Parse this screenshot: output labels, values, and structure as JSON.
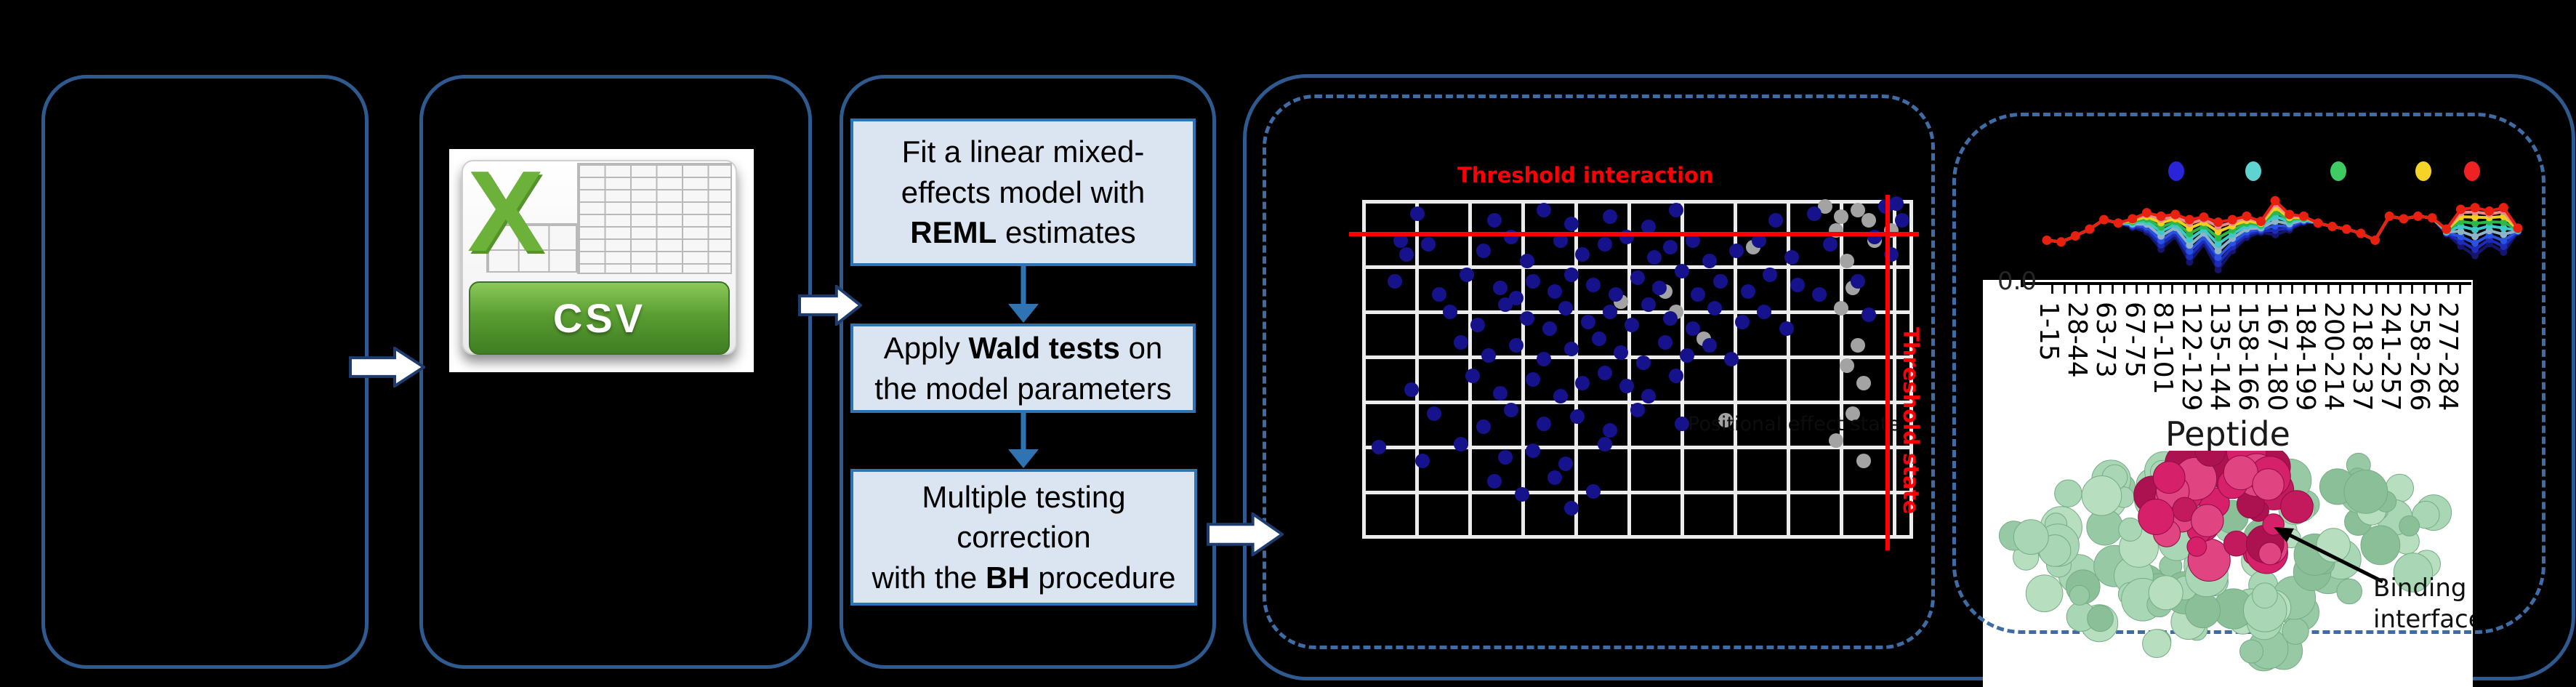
{
  "colors": {
    "background": "#000000",
    "panel_border": "#2e5a90",
    "dashed_border": "#3f6ca5",
    "flowbox_fill": "#dbe5f1",
    "flowbox_border": "#2e74b5",
    "connector_arrow": "#2e74b5",
    "block_arrow_fill": "#ffffff",
    "block_arrow_outline": "#1e3c6e",
    "threshold_red": "#fb0006",
    "csv_green": "#5a9e32",
    "structure_green": "#a9d6b4",
    "structure_magenta": "#d62069"
  },
  "csv": {
    "x_glyph": "X",
    "label": "CSV"
  },
  "flowchart": {
    "boxes": [
      {
        "segments": [
          {
            "t": "Fit a linear mixed-\neffects model with\n",
            "b": false
          },
          {
            "t": "REML",
            "b": true
          },
          {
            "t": " estimates",
            "b": false
          }
        ]
      },
      {
        "segments": [
          {
            "t": "Apply ",
            "b": false
          },
          {
            "t": "Wald tests",
            "b": true
          },
          {
            "t": " on\nthe model parameters",
            "b": false
          }
        ]
      },
      {
        "segments": [
          {
            "t": "Multiple testing\ncorrection\nwith the ",
            "b": false
          },
          {
            "t": "BH",
            "b": true
          },
          {
            "t": " procedure",
            "b": false
          }
        ]
      }
    ]
  },
  "structure": {
    "annotation_line1": "Binding",
    "annotation_line2": "interface"
  },
  "chart_data": [
    {
      "type": "scatter",
      "threshold_labels": {
        "interaction": "Threshold interaction",
        "state": "Threshold state"
      },
      "faint_inplot_label": "Positional effect state",
      "threshold_line_color": "#fb0006",
      "point_colors": {
        "blue": "#15128c",
        "gray": "#a3a3a3"
      },
      "x_range": [
        0,
        100
      ],
      "y_range": [
        0,
        100
      ],
      "threshold_interaction_y": 10,
      "threshold_state_x": 95,
      "points_blue": [
        [
          10,
          4
        ],
        [
          24,
          6
        ],
        [
          33,
          3
        ],
        [
          38,
          7
        ],
        [
          45,
          5
        ],
        [
          52,
          8
        ],
        [
          57,
          3
        ],
        [
          75,
          6
        ],
        [
          82,
          4
        ],
        [
          95,
          2
        ],
        [
          97,
          1
        ],
        [
          98,
          6
        ],
        [
          7,
          12
        ],
        [
          8,
          16
        ],
        [
          12,
          13
        ],
        [
          22,
          15
        ],
        [
          27,
          11
        ],
        [
          30,
          18
        ],
        [
          36,
          12
        ],
        [
          40,
          16
        ],
        [
          44,
          13
        ],
        [
          48,
          11
        ],
        [
          53,
          17
        ],
        [
          56,
          14
        ],
        [
          60,
          12
        ],
        [
          63,
          18
        ],
        [
          68,
          15
        ],
        [
          72,
          12
        ],
        [
          78,
          17
        ],
        [
          85,
          13
        ],
        [
          93,
          11
        ],
        [
          96,
          16
        ],
        [
          6,
          24
        ],
        [
          14,
          28
        ],
        [
          19,
          22
        ],
        [
          25,
          26
        ],
        [
          28,
          29
        ],
        [
          31,
          24
        ],
        [
          35,
          27
        ],
        [
          38,
          22
        ],
        [
          42,
          25
        ],
        [
          46,
          28
        ],
        [
          50,
          23
        ],
        [
          54,
          26
        ],
        [
          58,
          21
        ],
        [
          61,
          28
        ],
        [
          65,
          24
        ],
        [
          70,
          27
        ],
        [
          74,
          22
        ],
        [
          79,
          25
        ],
        [
          83,
          28
        ],
        [
          90,
          24
        ],
        [
          16,
          33
        ],
        [
          21,
          37
        ],
        [
          26,
          31
        ],
        [
          30,
          35
        ],
        [
          34,
          38
        ],
        [
          37,
          32
        ],
        [
          41,
          36
        ],
        [
          45,
          33
        ],
        [
          49,
          37
        ],
        [
          52,
          31
        ],
        [
          56,
          35
        ],
        [
          60,
          38
        ],
        [
          64,
          32
        ],
        [
          69,
          36
        ],
        [
          73,
          33
        ],
        [
          77,
          38
        ],
        [
          92,
          34
        ],
        [
          18,
          42
        ],
        [
          23,
          46
        ],
        [
          28,
          43
        ],
        [
          33,
          47
        ],
        [
          38,
          44
        ],
        [
          43,
          41
        ],
        [
          47,
          45
        ],
        [
          51,
          48
        ],
        [
          55,
          42
        ],
        [
          59,
          46
        ],
        [
          63,
          43
        ],
        [
          67,
          47
        ],
        [
          9,
          56
        ],
        [
          20,
          52
        ],
        [
          25,
          57
        ],
        [
          31,
          53
        ],
        [
          36,
          58
        ],
        [
          40,
          54
        ],
        [
          44,
          51
        ],
        [
          48,
          55
        ],
        [
          52,
          58
        ],
        [
          57,
          52
        ],
        [
          13,
          63
        ],
        [
          22,
          67
        ],
        [
          27,
          62
        ],
        [
          33,
          66
        ],
        [
          39,
          64
        ],
        [
          45,
          68
        ],
        [
          50,
          62
        ],
        [
          58,
          66
        ],
        [
          3,
          73
        ],
        [
          11,
          77
        ],
        [
          18,
          72
        ],
        [
          26,
          76
        ],
        [
          31,
          74
        ],
        [
          37,
          78
        ],
        [
          44,
          72
        ],
        [
          24,
          83
        ],
        [
          29,
          87
        ],
        [
          35,
          82
        ],
        [
          42,
          86
        ],
        [
          38,
          91
        ]
      ],
      "points_gray": [
        [
          84,
          2
        ],
        [
          87,
          5
        ],
        [
          86,
          9
        ],
        [
          90,
          3
        ],
        [
          92,
          6
        ],
        [
          93,
          12
        ],
        [
          55,
          27
        ],
        [
          57,
          33
        ],
        [
          47,
          30
        ],
        [
          62,
          41
        ],
        [
          71,
          14
        ],
        [
          88,
          18
        ],
        [
          89,
          26
        ],
        [
          87,
          32
        ],
        [
          90,
          43
        ],
        [
          88,
          49
        ],
        [
          91,
          54
        ],
        [
          89,
          63
        ],
        [
          86,
          71
        ],
        [
          91,
          77
        ],
        [
          66,
          65
        ],
        [
          96,
          9
        ]
      ]
    },
    {
      "type": "line",
      "x_label": "Peptide",
      "y_tick_visible": "0.0",
      "categories": [
        "1-15",
        "28-44",
        "63-73",
        "67-75",
        "81-101",
        "122-129",
        "135-144",
        "158-166",
        "167-180",
        "184-199",
        "200-214",
        "218-237",
        "241-257",
        "258-266",
        "277-284"
      ],
      "legend_marker_colors": [
        "#2a24d8",
        "#5ed3cf",
        "#3fcb63",
        "#f5d327",
        "#ee2222"
      ],
      "envelope": [
        0.42,
        0.4,
        0.47,
        0.55,
        0.66,
        0.62,
        0.67,
        0.74,
        0.7,
        0.72,
        0.66,
        0.69,
        0.63,
        0.66,
        0.7,
        0.64,
        0.88,
        0.72,
        0.7,
        0.62,
        0.58,
        0.55,
        0.5,
        0.42,
        0.7,
        0.67,
        0.7,
        0.68,
        0.55,
        0.78,
        0.8,
        0.76,
        0.8,
        0.56
      ],
      "spread": [
        0,
        0,
        0,
        0,
        0,
        0,
        0.15,
        0.3,
        0.55,
        0.35,
        0.75,
        0.45,
        0.88,
        0.55,
        0.35,
        0.2,
        0.45,
        0.25,
        0.1,
        0,
        0,
        0,
        0,
        0,
        0,
        0,
        0,
        0,
        0.1,
        0.55,
        0.7,
        0.5,
        0.65,
        0.08
      ],
      "series": [
        {
          "name": "dark-navy",
          "color": "#15156e",
          "depth": 1.0
        },
        {
          "name": "navy",
          "color": "#1c2bb8",
          "depth": 0.87
        },
        {
          "name": "blue",
          "color": "#2a52e0",
          "depth": 0.74
        },
        {
          "name": "steel-blue",
          "color": "#8fb3c8",
          "depth": 0.6
        },
        {
          "name": "cyan",
          "color": "#3ec9c9",
          "depth": 0.46
        },
        {
          "name": "green",
          "color": "#2eb84a",
          "depth": 0.33
        },
        {
          "name": "yellow",
          "color": "#f0cf1f",
          "depth": 0.2
        },
        {
          "name": "salmon",
          "color": "#f08a8a",
          "depth": 0.09
        },
        {
          "name": "red",
          "color": "#e8200f",
          "depth": 0.0
        }
      ]
    }
  ]
}
